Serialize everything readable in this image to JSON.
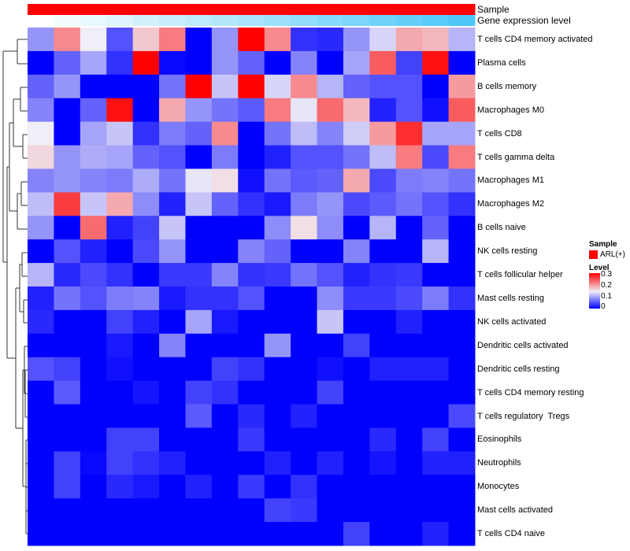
{
  "chart_data": {
    "type": "heatmap",
    "annotations": [
      {
        "name": "Sample",
        "kind": "categorical",
        "values": [
          "ARL(+)"
        ],
        "color": "#FF0000"
      },
      {
        "name": "Gene expression level",
        "kind": "gradient",
        "color_low": "#FFFFFF",
        "color_high": "#4FC8F8"
      }
    ],
    "rows": [
      "T cells CD4 memory activated",
      "Plasma cells",
      "B cells memory",
      "Macrophages M0",
      "T cells CD8",
      "T cells gamma delta",
      "Macrophages M1",
      "Macrophages M2",
      "B cells naive",
      "NK cells resting",
      "T cells follicular helper",
      "Mast cells resting",
      "NK cells activated",
      "Dendritic cells activated",
      "Dendritic cells resting",
      "T cells CD4 memory resting",
      "T cells regulatory  Tregs",
      "Eosinophils",
      "Neutrophils",
      "Monocytes",
      "Mast cells activated",
      "T cells CD4 naive"
    ],
    "n_columns": 17,
    "values": [
      [
        0.09,
        0.21,
        0.145,
        0.05,
        0.17,
        0.22,
        0,
        0.09,
        0.3,
        0.21,
        0.03,
        0.025,
        0.09,
        0.13,
        0.19,
        0.18,
        0.11
      ],
      [
        0,
        0.06,
        0.1,
        0.03,
        0.3,
        0.005,
        0,
        0.09,
        0.06,
        0,
        0.08,
        0,
        0.1,
        0.24,
        0.04,
        0.29,
        0
      ],
      [
        0.06,
        0.09,
        0,
        0,
        0,
        0.07,
        0.3,
        0.12,
        0.3,
        0.13,
        0.21,
        0.11,
        0.06,
        0.05,
        0.05,
        0,
        0.2
      ],
      [
        0.08,
        0,
        0.06,
        0.29,
        0,
        0.19,
        0.09,
        0.07,
        0.055,
        0.22,
        0.14,
        0.23,
        0.18,
        0.02,
        0.05,
        0.01,
        0.24
      ],
      [
        0.145,
        0,
        0.1,
        0.12,
        0.03,
        0.075,
        0.06,
        0.21,
        0,
        0.07,
        0.115,
        0.08,
        0.125,
        0.2,
        0.27,
        0.1,
        0.1
      ],
      [
        0.16,
        0.09,
        0.105,
        0.1,
        0.06,
        0.05,
        0,
        0.075,
        0,
        0.02,
        0.05,
        0.05,
        0.07,
        0.115,
        0.22,
        0.045,
        0.22
      ],
      [
        0.08,
        0.09,
        0.08,
        0.075,
        0.105,
        0.07,
        0.14,
        0.155,
        0.01,
        0.07,
        0.055,
        0.06,
        0.19,
        0.045,
        0.075,
        0.08,
        0.07
      ],
      [
        0.115,
        0.26,
        0.12,
        0.19,
        0.085,
        0.02,
        0.12,
        0.06,
        0.03,
        0.015,
        0.075,
        0.09,
        0.045,
        0.055,
        0.07,
        0.05,
        0.03
      ],
      [
        0.09,
        0,
        0.23,
        0.02,
        0.04,
        0.12,
        0,
        0,
        0,
        0.085,
        0.155,
        0.085,
        0,
        0.11,
        0,
        0.06,
        0
      ],
      [
        0,
        0.05,
        0.02,
        0,
        0.045,
        0.09,
        0,
        0,
        0.08,
        0.06,
        0,
        0,
        0.08,
        0,
        0,
        0.11,
        0
      ],
      [
        0.11,
        0.025,
        0.045,
        0.03,
        0,
        0.035,
        0.035,
        0.08,
        0.03,
        0.035,
        0.07,
        0.05,
        0.02,
        0.03,
        0.035,
        0,
        0
      ],
      [
        0.02,
        0.07,
        0.05,
        0.075,
        0.08,
        0.015,
        0.03,
        0.03,
        0.05,
        0,
        0,
        0.085,
        0.035,
        0.035,
        0.045,
        0.075,
        0.03
      ],
      [
        0.025,
        0,
        0,
        0.04,
        0.02,
        0,
        0.1,
        0.015,
        0,
        0,
        0,
        0.12,
        0,
        0,
        0.02,
        0,
        0
      ],
      [
        0,
        0,
        0,
        0.015,
        0,
        0.08,
        0,
        0,
        0,
        0.09,
        0,
        0,
        0.04,
        0,
        0,
        0,
        0
      ],
      [
        0.05,
        0.04,
        0,
        0.01,
        0,
        0,
        0,
        0.04,
        0.03,
        0,
        0,
        0.01,
        0,
        0.02,
        0.02,
        0.02,
        0
      ],
      [
        0,
        0.055,
        0,
        0,
        0.012,
        0,
        0.04,
        0.03,
        0,
        0,
        0,
        0.04,
        0,
        0,
        0,
        0,
        0
      ],
      [
        0,
        0,
        0,
        0,
        0,
        0,
        0.055,
        0,
        0.025,
        0,
        0.02,
        0,
        0,
        0,
        0,
        0,
        0.045
      ],
      [
        0,
        0,
        0,
        0.04,
        0.04,
        0,
        0,
        0,
        0.035,
        0,
        0,
        0,
        0,
        0.025,
        0,
        0.04,
        0
      ],
      [
        0,
        0.04,
        0.005,
        0.04,
        0.03,
        0.02,
        0,
        0,
        0,
        0.02,
        0,
        0.02,
        0,
        0.012,
        0,
        0.02,
        0.02
      ],
      [
        0,
        0.04,
        0,
        0.025,
        0.015,
        0,
        0.02,
        0,
        0.035,
        0,
        0.03,
        0,
        0,
        0,
        0,
        0,
        0
      ],
      [
        0,
        0,
        0,
        0,
        0,
        0,
        0,
        0,
        0,
        0.04,
        0.035,
        0,
        0,
        0,
        0,
        0,
        0
      ],
      [
        0,
        0,
        0,
        0,
        0,
        0,
        0,
        0,
        0,
        0,
        0,
        0,
        0.04,
        0,
        0,
        0.02,
        0
      ]
    ],
    "color_scale": {
      "low": "#0000FF",
      "mid": "#F0EEF6",
      "high": "#FF0000",
      "range": [
        0,
        0.3
      ]
    },
    "legend": {
      "sample_title": "Sample",
      "sample_item": "ARL(+)",
      "level_title": "Level",
      "level_ticks": [
        "0.3",
        "0.2",
        "0.1",
        "0"
      ]
    },
    "dendrogram": "rows",
    "legend_placement": "right"
  }
}
